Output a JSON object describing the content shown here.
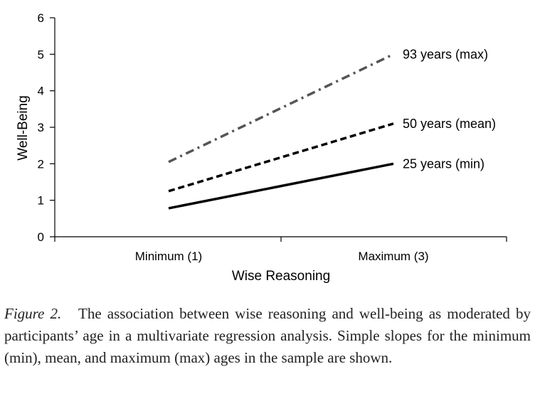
{
  "chart_data": {
    "type": "line",
    "categories": [
      "Minimum (1)",
      "Maximum (3)"
    ],
    "xlabel": "Wise Reasoning",
    "ylabel": "Well-Being",
    "ylim": [
      0,
      6
    ],
    "yticks": [
      "0",
      "1",
      "2",
      "3",
      "4",
      "5",
      "6"
    ],
    "grid": false,
    "series": [
      {
        "name": "93 years (max)",
        "values": [
          2.05,
          5.0
        ],
        "style": "dash-dot",
        "color": "#555555"
      },
      {
        "name": "50 years (mean)",
        "values": [
          1.25,
          3.1
        ],
        "style": "dashed",
        "color": "#000000"
      },
      {
        "name": "25 years (min)",
        "values": [
          0.78,
          2.0
        ],
        "style": "solid",
        "color": "#000000"
      }
    ]
  },
  "caption": {
    "figure_label": "Figure 2.",
    "text": "The association between wise reasoning and well-being as moderated by participants’ age in a multivariate regression analysis. Simple slopes for the minimum (min), mean, and maximum (max) ages in the sample are shown."
  }
}
